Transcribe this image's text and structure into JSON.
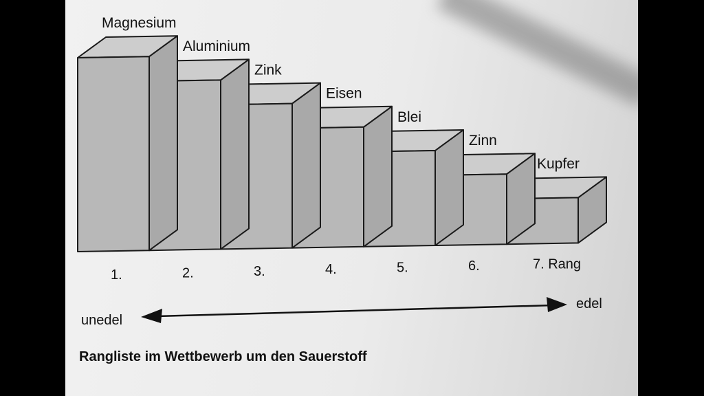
{
  "chart_data": {
    "type": "bar",
    "categories": [
      "Magnesium",
      "Aluminium",
      "Zink",
      "Eisen",
      "Blei",
      "Zinn",
      "Kupfer"
    ],
    "ranks": [
      "1.",
      "2.",
      "3.",
      "4.",
      "5.",
      "6.",
      "7. Rang"
    ],
    "values": [
      7,
      6,
      5,
      4,
      3,
      2,
      1
    ],
    "scale_left": "unedel",
    "scale_right": "edel",
    "caption": "Rangliste im Wettbewerb um den Sauerstoff",
    "colors": {
      "front": "#b8b8b8",
      "top": "#cdcdcd",
      "side": "#a9a9a9",
      "stroke": "#1a1a1a"
    }
  }
}
